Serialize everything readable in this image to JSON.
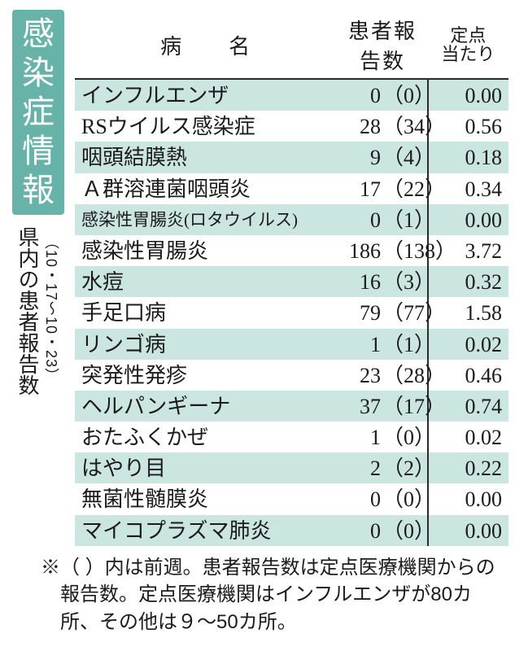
{
  "colors": {
    "badge_bg": "#67b3aa",
    "badge_fg": "#ffffff",
    "row_stripe": "#cbe5e0",
    "line": "#2a2a2a",
    "text": "#1b1b1b"
  },
  "badge_chars": [
    "感",
    "染",
    "症",
    "情",
    "報"
  ],
  "sidebar": {
    "subtitle": "県内の患者報告数",
    "range": "（10・17〜10・23）"
  },
  "headers": {
    "name": "病　　名",
    "count": "患者報告数",
    "rate_l1": "定点",
    "rate_l2": "当たり"
  },
  "rows": [
    {
      "name": "インフルエンザ",
      "count": "0",
      "prev": "（0）",
      "rate": "0.00"
    },
    {
      "name": "RSウイルス感染症",
      "count": "28",
      "prev": "（34）",
      "rate": "0.56"
    },
    {
      "name": "咽頭結膜熱",
      "count": "9",
      "prev": "（4）",
      "rate": "0.18"
    },
    {
      "name": "Ａ群溶連菌咽頭炎",
      "count": "17",
      "prev": "（22）",
      "rate": "0.34"
    },
    {
      "name": "感染性胃腸炎(ロタウイルス)",
      "count": "0",
      "prev": "（1）",
      "rate": "0.00",
      "small": true
    },
    {
      "name": "感染性胃腸炎",
      "count": "186",
      "prev": "（138）",
      "rate": "3.72"
    },
    {
      "name": "水痘",
      "count": "16",
      "prev": "（3）",
      "rate": "0.32"
    },
    {
      "name": "手足口病",
      "count": "79",
      "prev": "（77）",
      "rate": "1.58"
    },
    {
      "name": "リンゴ病",
      "count": "1",
      "prev": "（1）",
      "rate": "0.02"
    },
    {
      "name": "突発性発疹",
      "count": "23",
      "prev": "（28）",
      "rate": "0.46"
    },
    {
      "name": "ヘルパンギーナ",
      "count": "37",
      "prev": "（17）",
      "rate": "0.74"
    },
    {
      "name": "おたふくかぜ",
      "count": "1",
      "prev": "（0）",
      "rate": "0.02"
    },
    {
      "name": "はやり目",
      "count": "2",
      "prev": "（2）",
      "rate": "0.22"
    },
    {
      "name": "無菌性髄膜炎",
      "count": "0",
      "prev": "（0）",
      "rate": "0.00"
    },
    {
      "name": "マイコプラズマ肺炎",
      "count": "0",
      "prev": "（0）",
      "rate": "0.00"
    }
  ],
  "footnote": "※（ ）内は前週。患者報告数は定点医療機関からの報告数。定点医療機関はインフルエンザが80カ所、その他は９〜50カ所。"
}
